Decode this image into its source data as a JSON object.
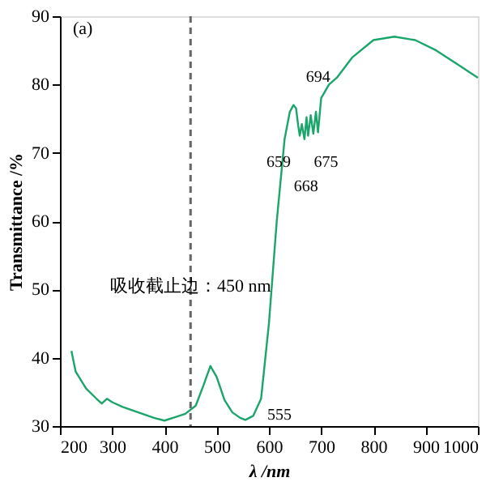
{
  "chart_data": {
    "type": "line",
    "xlabel": "λ /nm",
    "ylabel": "Transmittance /%",
    "xlim": [
      200,
      1000
    ],
    "xticks": [
      200,
      300,
      400,
      500,
      600,
      700,
      800,
      900,
      1000
    ],
    "ylim": [
      30,
      90
    ],
    "yticks": [
      30,
      40,
      50,
      60,
      70,
      80,
      90
    ],
    "grid": false,
    "marker": "none",
    "line_style": "solid",
    "x": [
      222,
      230,
      250,
      270,
      280,
      290,
      300,
      320,
      350,
      380,
      400,
      420,
      440,
      460,
      475,
      488,
      500,
      515,
      530,
      545,
      555,
      570,
      585,
      600,
      615,
      630,
      640,
      647,
      652,
      656,
      659,
      663,
      668,
      672,
      675,
      680,
      685,
      690,
      694,
      700,
      715,
      730,
      760,
      800,
      840,
      880,
      920,
      960,
      1000
    ],
    "series": [
      {
        "color": "#1aa56a",
        "values": [
          41,
          38,
          35.5,
          34,
          33.3,
          34,
          33.5,
          32.8,
          32,
          31.2,
          30.8,
          31.3,
          31.8,
          33,
          36,
          38.8,
          37.2,
          33.8,
          32,
          31.2,
          30.9,
          31.5,
          34,
          45,
          60,
          72,
          76,
          77,
          76.5,
          74,
          72.5,
          74.2,
          72,
          75.2,
          72.5,
          75.5,
          72.8,
          76,
          73,
          78,
          80,
          81,
          84,
          86.5,
          87,
          86.5,
          85,
          83,
          81
        ]
      }
    ],
    "ref_lines": [
      {
        "axis": "x",
        "value": 450,
        "label": "吸收截止边：450 nm",
        "line_style": "dashed",
        "color": "#666666"
      }
    ],
    "annotations": [
      "(a)",
      {
        "text": "694",
        "x": 694,
        "y": 73
      },
      {
        "text": "659",
        "x": 659,
        "y": 72.5
      },
      {
        "text": "675",
        "x": 675,
        "y": 72.5
      },
      {
        "text": "668",
        "x": 668,
        "y": 72
      },
      {
        "text": "555",
        "x": 555,
        "y": 30.9
      }
    ]
  }
}
